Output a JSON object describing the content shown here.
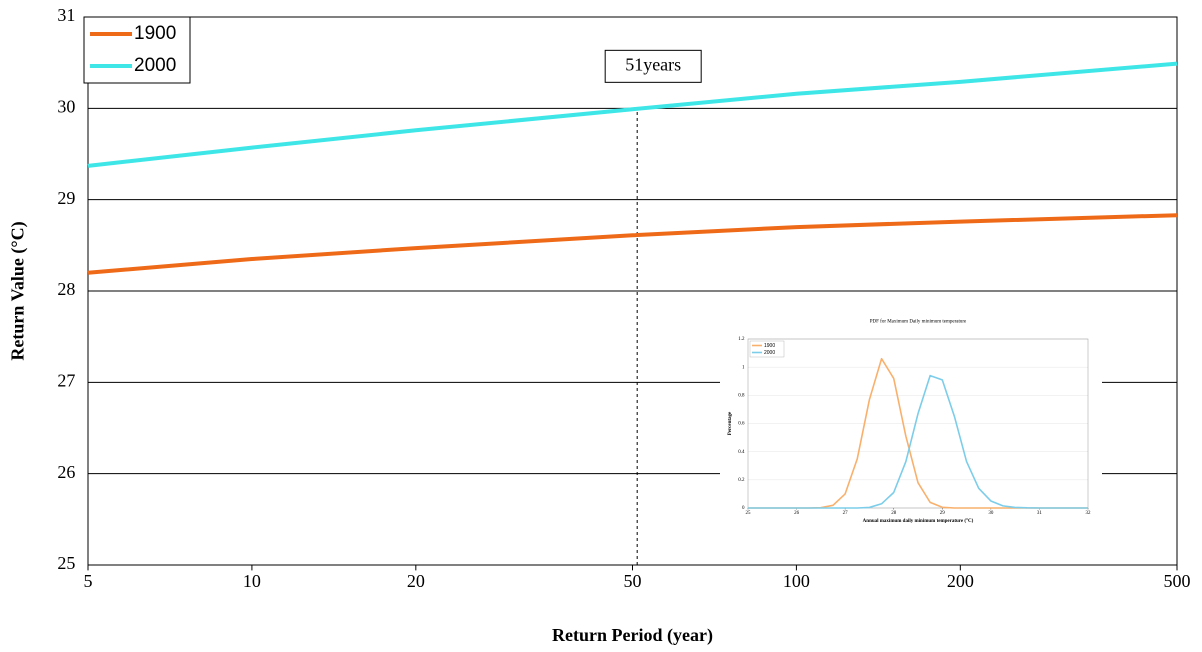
{
  "chart_data": [
    {
      "type": "line",
      "x_label": "Return Period (year)",
      "y_label": "Return Value (°C)",
      "xlog": true,
      "x": [
        5,
        10,
        20,
        50,
        100,
        200,
        500
      ],
      "series": [
        {
          "name": "1900",
          "color": "#ef6a18",
          "values": [
            28.2,
            28.35,
            28.47,
            28.61,
            28.7,
            28.76,
            28.83
          ]
        },
        {
          "name": "2000",
          "color": "#3ee6e8",
          "values": [
            29.37,
            29.57,
            29.76,
            29.99,
            30.16,
            30.29,
            30.49
          ]
        }
      ],
      "xlim": [
        5,
        500
      ],
      "xticks": [
        5,
        10,
        20,
        50,
        100,
        200,
        500
      ],
      "ylim": [
        25,
        31
      ],
      "yticks": [
        25,
        26,
        27,
        28,
        29,
        30,
        31
      ],
      "grid": true,
      "legend": "top-left",
      "annotation": {
        "text": "51years",
        "x": 51,
        "y": 30
      }
    },
    {
      "type": "line",
      "title": "PDF for Maximum Daily minimum temperature",
      "x_label": "Annual maximum daily minimum temperature (°C)",
      "y_label": "Percentage",
      "x": [
        25,
        25.25,
        25.5,
        25.75,
        26,
        26.25,
        26.5,
        26.75,
        27,
        27.25,
        27.5,
        27.75,
        28,
        28.25,
        28.5,
        28.75,
        29,
        29.25,
        29.5,
        29.75,
        30,
        30.25,
        30.5,
        30.75,
        31,
        31.25,
        31.5,
        31.75,
        32
      ],
      "series": [
        {
          "name": "1900",
          "color": "#f9b06c",
          "values": [
            0,
            0,
            0,
            0,
            0,
            0,
            0.002,
            0.019,
            0.1,
            0.35,
            0.77,
            1.06,
            0.92,
            0.51,
            0.18,
            0.04,
            0.005,
            0,
            0,
            0,
            0,
            0,
            0,
            0,
            0,
            0,
            0,
            0,
            0
          ]
        },
        {
          "name": "2000",
          "color": "#7ccdea",
          "values": [
            0,
            0,
            0,
            0,
            0,
            0,
            0,
            0,
            0,
            0,
            0.004,
            0.03,
            0.11,
            0.33,
            0.67,
            0.94,
            0.91,
            0.65,
            0.33,
            0.14,
            0.05,
            0.015,
            0.004,
            0.001,
            0,
            0,
            0,
            0,
            0
          ]
        }
      ],
      "xlim": [
        25,
        32
      ],
      "xticks": [
        25,
        26,
        27,
        28,
        29,
        30,
        31,
        32
      ],
      "ylim": [
        0,
        1.2
      ],
      "yticks": [
        0,
        0.2,
        0.4,
        0.6,
        0.8,
        1,
        1.2
      ],
      "grid": true,
      "legend": "top-left"
    }
  ]
}
